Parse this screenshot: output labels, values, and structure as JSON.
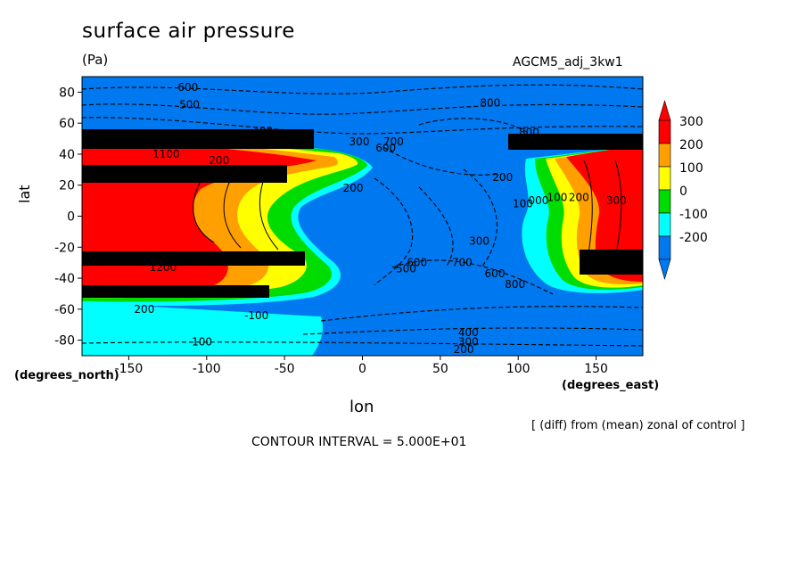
{
  "figure": {
    "title": "surface air pressure",
    "units": "(Pa)",
    "run_label": "AGCM5_adj_3kw1",
    "xlabel": "lon",
    "ylabel": "lat",
    "x_coord_label": "(degrees_east)",
    "y_coord_label": "(degrees_north)",
    "note": "[ (diff) from (mean) zonal of control ]",
    "contour_interval": "CONTOUR INTERVAL = 5.000E+01"
  },
  "chart_data": {
    "type": "heatmap",
    "title": "surface air pressure",
    "xlabel": "lon",
    "ylabel": "lat",
    "xlim": [
      -180,
      180
    ],
    "ylim": [
      -90,
      90
    ],
    "x_ticks": [
      -150,
      -100,
      -50,
      0,
      50,
      100,
      150
    ],
    "y_ticks": [
      80,
      60,
      40,
      20,
      0,
      -20,
      -40,
      -60,
      -80
    ],
    "colorbar": {
      "levels": [
        {
          "label": "300",
          "color": "#ff0000"
        },
        {
          "label": "200",
          "color": "#ffa000"
        },
        {
          "label": "100",
          "color": "#ffff00"
        },
        {
          "label": "0",
          "color": "#00dc00"
        },
        {
          "label": "-100",
          "color": "#00ffff"
        },
        {
          "label": "-200",
          "color": "#0078f0"
        }
      ],
      "over_color": "#ff0000",
      "under_color": "#0078f0"
    },
    "contour_labels": [
      {
        "text": "600",
        "lon": -112,
        "lat": 83
      },
      {
        "text": "500",
        "lon": -111,
        "lat": 72
      },
      {
        "text": "400",
        "lon": -64,
        "lat": 55
      },
      {
        "text": "800",
        "lon": 82,
        "lat": 73
      },
      {
        "text": "800",
        "lon": 107,
        "lat": 54
      },
      {
        "text": "300",
        "lon": -2,
        "lat": 48
      },
      {
        "text": "700",
        "lon": 20,
        "lat": 48
      },
      {
        "text": "600",
        "lon": 15,
        "lat": 44
      },
      {
        "text": "200",
        "lon": -92,
        "lat": 36
      },
      {
        "text": "1100",
        "lon": -126,
        "lat": 40
      },
      {
        "text": "200",
        "lon": 90,
        "lat": 25
      },
      {
        "text": "100",
        "lon": 103,
        "lat": 8
      },
      {
        "text": "100",
        "lon": 125,
        "lat": 12
      },
      {
        "text": "000",
        "lon": 113,
        "lat": 10
      },
      {
        "text": "200",
        "lon": 139,
        "lat": 12
      },
      {
        "text": "300",
        "lon": 163,
        "lat": 10
      },
      {
        "text": "200",
        "lon": -6,
        "lat": 18
      },
      {
        "text": "300",
        "lon": 75,
        "lat": -16
      },
      {
        "text": "700",
        "lon": 64,
        "lat": -30
      },
      {
        "text": "600",
        "lon": 85,
        "lat": -37
      },
      {
        "text": "800",
        "lon": 98,
        "lat": -44
      },
      {
        "text": "600",
        "lon": 35,
        "lat": -30
      },
      {
        "text": "500",
        "lon": 28,
        "lat": -34
      },
      {
        "text": "1200",
        "lon": -128,
        "lat": -33
      },
      {
        "text": "200",
        "lon": -140,
        "lat": -60
      },
      {
        "text": "100",
        "lon": -103,
        "lat": -81
      },
      {
        "text": "-100",
        "lon": -68,
        "lat": -64
      },
      {
        "text": "400",
        "lon": 68,
        "lat": -75
      },
      {
        "text": "300",
        "lon": 68,
        "lat": -81
      },
      {
        "text": "200",
        "lon": 65,
        "lat": -86
      }
    ]
  }
}
